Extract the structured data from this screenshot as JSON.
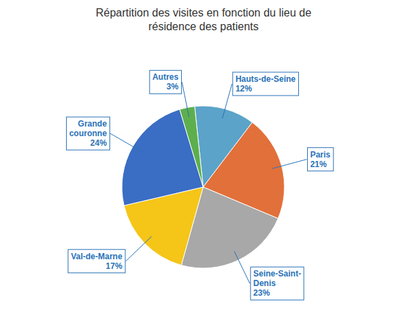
{
  "chart_data": {
    "type": "pie",
    "title": "Répartition des visites en fonction du lieu de\nrésidence des patients",
    "categories": [
      "Hauts-de-Seine",
      "Paris",
      "Seine-Saint-\nDenis",
      "Val-de-Marne",
      "Grande\ncouronne",
      "Autres"
    ],
    "values": [
      12,
      21,
      23,
      17,
      24,
      3
    ],
    "value_labels": [
      "12%",
      "21%",
      "23%",
      "17%",
      "24%",
      "3%"
    ],
    "colors": [
      "#5BA3C9",
      "#E2703A",
      "#A8A8A8",
      "#F5C518",
      "#3A6DC4",
      "#5DAF4E"
    ],
    "data_labels": true
  }
}
